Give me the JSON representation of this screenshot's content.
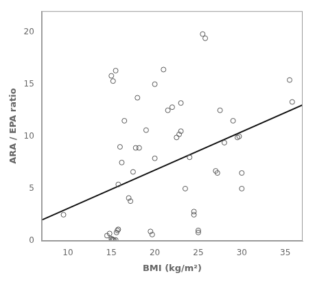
{
  "chart_data": {
    "type": "scatter",
    "xlabel": "BMI (kg/m²)",
    "ylabel": "ARA / EPA ratio",
    "xlim": [
      7,
      37
    ],
    "ylim": [
      0,
      22
    ],
    "xticks": [
      10,
      15,
      20,
      25,
      30,
      35
    ],
    "yticks": [
      0,
      5,
      10,
      15,
      20
    ],
    "grid": false,
    "series": [
      {
        "type": "scatter",
        "marker": "circle",
        "color": "#555555",
        "x": [
          9.5,
          14.5,
          14.8,
          15.0,
          15.1,
          15.2,
          15.3,
          15.5,
          15.6,
          15.7,
          15.8,
          15.0,
          15.2,
          15.5,
          15.8,
          16.0,
          16.2,
          16.5,
          17.0,
          17.2,
          17.5,
          17.8,
          18.0,
          18.2,
          19.0,
          19.5,
          19.7,
          20.0,
          20.0,
          21.0,
          21.5,
          22.0,
          22.5,
          22.8,
          23.0,
          23.0,
          23.5,
          24.0,
          24.5,
          24.5,
          25.0,
          25.0,
          25.5,
          25.8,
          27.0,
          27.2,
          27.5,
          28.0,
          29.0,
          29.5,
          29.7,
          30.0,
          30.0,
          35.5,
          35.8
        ],
        "values": [
          2.5,
          0.5,
          0.7,
          0.2,
          0.15,
          0.1,
          0.08,
          0.08,
          0.8,
          1.0,
          1.1,
          15.8,
          15.3,
          16.3,
          5.4,
          9.0,
          7.5,
          11.5,
          4.1,
          3.8,
          6.6,
          8.9,
          13.7,
          8.9,
          10.6,
          0.9,
          0.6,
          7.9,
          15.0,
          16.4,
          12.5,
          12.8,
          9.9,
          10.2,
          13.2,
          10.5,
          5.0,
          8.0,
          2.8,
          2.5,
          1.0,
          0.8,
          19.8,
          19.4,
          6.7,
          6.5,
          12.5,
          9.4,
          11.5,
          9.9,
          10.0,
          6.5,
          5.0,
          15.4,
          13.3
        ]
      },
      {
        "type": "line",
        "line_style": "solid",
        "color": "#111111",
        "x": [
          7,
          37
        ],
        "values": [
          1.999,
          13.009
        ]
      }
    ]
  }
}
